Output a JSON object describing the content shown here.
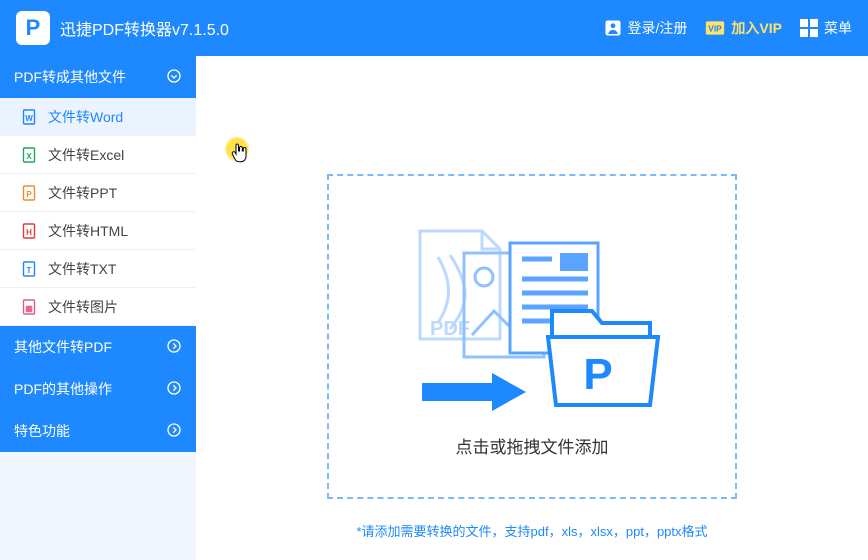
{
  "colors": {
    "primary": "#1e88ff",
    "sidebar_bg": "#f5f6f8",
    "active_bg": "#eaf3ff",
    "border_dashed": "#7bb9ff",
    "text": "#444444",
    "vip": "#ffe26a"
  },
  "titlebar": {
    "app_title": "迅捷PDF转换器v7.1.5.0",
    "login_label": "登录/注册",
    "vip_label": "加入VIP",
    "vip_badge": "VIP",
    "menu_label": "菜单"
  },
  "sidebar": {
    "sections": [
      {
        "title": "PDF转成其他文件",
        "expanded": true,
        "items": [
          {
            "label": "文件转Word",
            "icon_color": "#1e88ff",
            "icon_char": "W",
            "active": true
          },
          {
            "label": "文件转Excel",
            "icon_color": "#1aa85b",
            "icon_char": "X",
            "active": false
          },
          {
            "label": "文件转PPT",
            "icon_color": "#f08b2c",
            "icon_char": "P",
            "active": false
          },
          {
            "label": "文件转HTML",
            "icon_color": "#e23b3b",
            "icon_char": "H",
            "active": false
          },
          {
            "label": "文件转TXT",
            "icon_color": "#1e88ff",
            "icon_char": "T",
            "active": false
          },
          {
            "label": "文件转图片",
            "icon_color": "#e25a8a",
            "icon_char": "▦",
            "active": false
          }
        ]
      },
      {
        "title": "其他文件转PDF",
        "expanded": false
      },
      {
        "title": "PDF的其他操作",
        "expanded": false
      },
      {
        "title": "特色功能",
        "expanded": false
      }
    ]
  },
  "main": {
    "dropzone_label": "点击或拖拽文件添加",
    "hint": "*请添加需要转换的文件，支持pdf，xls，xlsx，ppt，pptx格式"
  },
  "illustration": {
    "pdf_stroke": "#bcd8ff",
    "img_stroke": "#8fc0ff",
    "doc_stroke": "#5aa4ff",
    "folder_stroke": "#1e88ff",
    "folder_fill": "#ffffff",
    "arrow_fill": "#1e88ff"
  }
}
